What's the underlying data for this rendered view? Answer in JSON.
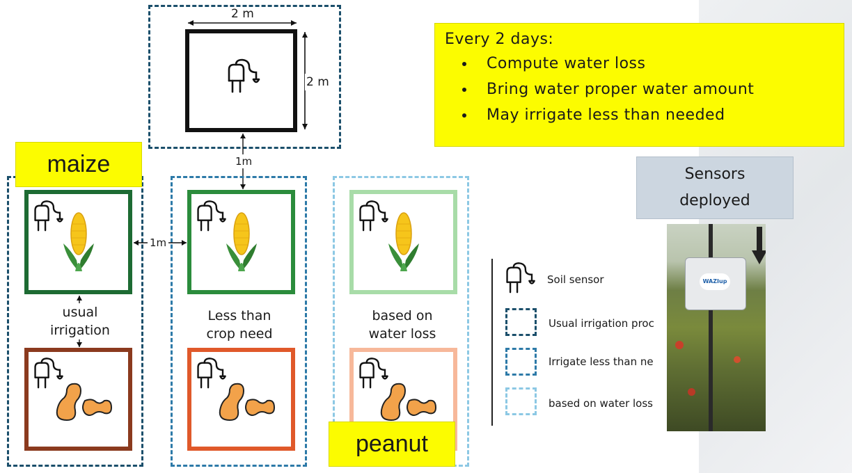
{
  "info": {
    "heading": "Every 2 days:",
    "bullets": [
      "Compute water loss",
      "Bring water proper water amount",
      "May irrigate less than needed"
    ]
  },
  "top_plot": {
    "width_label": "2 m",
    "height_label": "2 m"
  },
  "spacing_labels": {
    "vertical": "1m",
    "horizontal": "1m"
  },
  "crops": {
    "maize": "maize",
    "peanut": "peanut"
  },
  "columns": [
    {
      "label_line1": "usual",
      "label_line2": "irrigation",
      "border_color": "#1b4f6b"
    },
    {
      "label_line1": "Less than",
      "label_line2": "crop need",
      "border_color": "#2d7aa8"
    },
    {
      "label_line1": "based on",
      "label_line2": "water loss",
      "border_color": "#8cc8e4"
    }
  ],
  "legend": {
    "sensor": "Soil sensor",
    "usual": "Usual irrigation proc",
    "less": "Irrigate less than ne",
    "loss": "based on water loss"
  },
  "sensors": {
    "line1": "Sensors",
    "line2": "deployed"
  },
  "photo_box_label": "WAZIup",
  "colors": {
    "highlight": "#fcfc00",
    "maize_border": [
      "#1d6b33",
      "#2b8c3c",
      "#a8dca8"
    ],
    "peanut_border": [
      "#8b3a1e",
      "#e0592a",
      "#f7b89a"
    ]
  }
}
